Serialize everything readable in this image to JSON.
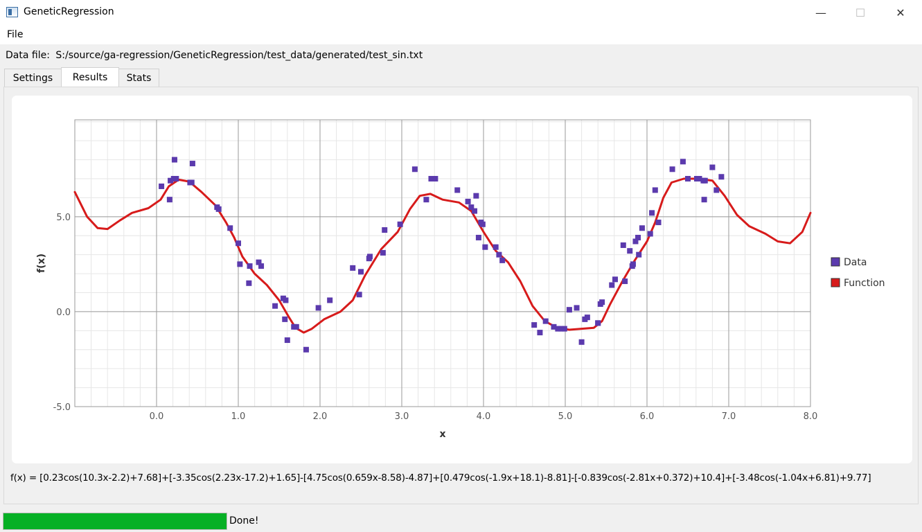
{
  "window": {
    "title": "GeneticRegression",
    "minimize_icon": "minimize-icon",
    "maximize_icon": "maximize-icon",
    "close_icon": "close-icon"
  },
  "menu": {
    "file": "File"
  },
  "datafile": {
    "label": "Data file:",
    "path": "S:/source/ga-regression/GeneticRegression/test_data/generated/test_sin.txt"
  },
  "tabs": [
    {
      "label": "Settings",
      "active": false
    },
    {
      "label": "Results",
      "active": true
    },
    {
      "label": "Stats",
      "active": false
    }
  ],
  "chart_data": {
    "type": "scatter",
    "title": "",
    "xlabel": "x",
    "ylabel": "f(x)",
    "xlim": [
      -1.0,
      8.0
    ],
    "ylim": [
      -5.0,
      10.0
    ],
    "x_ticks": [
      "0.0",
      "1.0",
      "2.0",
      "3.0",
      "4.0",
      "5.0",
      "6.0",
      "7.0",
      "8.0"
    ],
    "y_ticks": [
      "-5.0",
      "0.0",
      "5.0"
    ],
    "grid": true,
    "legend_position": "right",
    "colors": {
      "data": "#5b3aad",
      "function": "#d71b1b"
    },
    "series": [
      {
        "name": "Data",
        "kind": "points",
        "color": "#5b3aad",
        "points": [
          [
            0.06,
            6.6
          ],
          [
            0.16,
            5.9
          ],
          [
            0.17,
            6.9
          ],
          [
            0.21,
            7.0
          ],
          [
            0.22,
            8.0
          ],
          [
            0.24,
            7.0
          ],
          [
            0.41,
            6.8
          ],
          [
            0.43,
            6.8
          ],
          [
            0.44,
            7.8
          ],
          [
            0.74,
            5.5
          ],
          [
            0.76,
            5.4
          ],
          [
            0.9,
            4.4
          ],
          [
            1.0,
            3.6
          ],
          [
            1.02,
            2.5
          ],
          [
            1.13,
            1.5
          ],
          [
            1.14,
            2.4
          ],
          [
            1.25,
            2.6
          ],
          [
            1.28,
            2.4
          ],
          [
            1.45,
            0.3
          ],
          [
            1.55,
            0.7
          ],
          [
            1.57,
            -0.4
          ],
          [
            1.58,
            0.6
          ],
          [
            1.6,
            -1.5
          ],
          [
            1.68,
            -0.8
          ],
          [
            1.71,
            -0.8
          ],
          [
            1.83,
            -2.0
          ],
          [
            1.98,
            0.2
          ],
          [
            2.12,
            0.6
          ],
          [
            2.4,
            2.3
          ],
          [
            2.48,
            0.9
          ],
          [
            2.5,
            2.1
          ],
          [
            2.6,
            2.8
          ],
          [
            2.61,
            2.9
          ],
          [
            2.77,
            3.1
          ],
          [
            2.79,
            4.3
          ],
          [
            2.98,
            4.6
          ],
          [
            3.16,
            7.5
          ],
          [
            3.3,
            5.9
          ],
          [
            3.36,
            7.0
          ],
          [
            3.41,
            7.0
          ],
          [
            3.68,
            6.4
          ],
          [
            3.81,
            5.8
          ],
          [
            3.85,
            5.5
          ],
          [
            3.89,
            5.3
          ],
          [
            3.91,
            6.1
          ],
          [
            3.94,
            3.9
          ],
          [
            3.97,
            4.7
          ],
          [
            3.99,
            4.6
          ],
          [
            4.02,
            3.4
          ],
          [
            4.15,
            3.4
          ],
          [
            4.19,
            3.0
          ],
          [
            4.23,
            2.7
          ],
          [
            4.62,
            -0.7
          ],
          [
            4.69,
            -1.1
          ],
          [
            4.76,
            -0.5
          ],
          [
            4.86,
            -0.8
          ],
          [
            4.91,
            -0.9
          ],
          [
            4.95,
            -0.9
          ],
          [
            4.99,
            -0.9
          ],
          [
            5.05,
            0.1
          ],
          [
            5.14,
            0.2
          ],
          [
            5.2,
            -1.6
          ],
          [
            5.24,
            -0.4
          ],
          [
            5.27,
            -0.3
          ],
          [
            5.4,
            -0.6
          ],
          [
            5.4,
            -0.6
          ],
          [
            5.43,
            0.4
          ],
          [
            5.45,
            0.5
          ],
          [
            5.57,
            1.4
          ],
          [
            5.61,
            1.7
          ],
          [
            5.71,
            3.5
          ],
          [
            5.73,
            1.6
          ],
          [
            5.79,
            3.2
          ],
          [
            5.82,
            2.4
          ],
          [
            5.83,
            2.5
          ],
          [
            5.86,
            3.7
          ],
          [
            5.89,
            3.9
          ],
          [
            5.9,
            3.0
          ],
          [
            5.94,
            4.4
          ],
          [
            6.04,
            4.1
          ],
          [
            6.06,
            5.2
          ],
          [
            6.1,
            6.4
          ],
          [
            6.14,
            4.7
          ],
          [
            6.31,
            7.5
          ],
          [
            6.44,
            7.9
          ],
          [
            6.5,
            7.0
          ],
          [
            6.61,
            7.0
          ],
          [
            6.64,
            7.0
          ],
          [
            6.69,
            6.9
          ],
          [
            6.7,
            5.9
          ],
          [
            6.71,
            6.9
          ],
          [
            6.8,
            7.6
          ],
          [
            6.85,
            6.4
          ],
          [
            6.91,
            7.1
          ]
        ]
      },
      {
        "name": "Function",
        "kind": "line",
        "color": "#d71b1b",
        "points": [
          [
            -1.0,
            6.3
          ],
          [
            -0.85,
            5.0
          ],
          [
            -0.72,
            4.4
          ],
          [
            -0.6,
            4.35
          ],
          [
            -0.45,
            4.8
          ],
          [
            -0.3,
            5.2
          ],
          [
            -0.1,
            5.45
          ],
          [
            0.05,
            5.9
          ],
          [
            0.15,
            6.6
          ],
          [
            0.27,
            6.95
          ],
          [
            0.4,
            6.85
          ],
          [
            0.55,
            6.3
          ],
          [
            0.72,
            5.6
          ],
          [
            0.85,
            4.7
          ],
          [
            0.95,
            3.9
          ],
          [
            1.05,
            2.9
          ],
          [
            1.2,
            2.0
          ],
          [
            1.35,
            1.4
          ],
          [
            1.5,
            0.6
          ],
          [
            1.62,
            -0.3
          ],
          [
            1.7,
            -0.85
          ],
          [
            1.8,
            -1.1
          ],
          [
            1.9,
            -0.9
          ],
          [
            2.05,
            -0.4
          ],
          [
            2.25,
            0.0
          ],
          [
            2.4,
            0.6
          ],
          [
            2.55,
            1.9
          ],
          [
            2.75,
            3.3
          ],
          [
            2.95,
            4.2
          ],
          [
            3.1,
            5.4
          ],
          [
            3.22,
            6.1
          ],
          [
            3.35,
            6.2
          ],
          [
            3.5,
            5.9
          ],
          [
            3.7,
            5.75
          ],
          [
            3.85,
            5.3
          ],
          [
            4.0,
            4.2
          ],
          [
            4.15,
            3.2
          ],
          [
            4.3,
            2.6
          ],
          [
            4.45,
            1.6
          ],
          [
            4.6,
            0.3
          ],
          [
            4.75,
            -0.5
          ],
          [
            4.9,
            -0.85
          ],
          [
            5.05,
            -0.95
          ],
          [
            5.2,
            -0.9
          ],
          [
            5.35,
            -0.85
          ],
          [
            5.45,
            -0.5
          ],
          [
            5.55,
            0.4
          ],
          [
            5.7,
            1.6
          ],
          [
            5.85,
            2.7
          ],
          [
            6.0,
            3.7
          ],
          [
            6.1,
            4.7
          ],
          [
            6.2,
            6.0
          ],
          [
            6.3,
            6.8
          ],
          [
            6.45,
            7.0
          ],
          [
            6.6,
            7.0
          ],
          [
            6.8,
            6.9
          ],
          [
            6.95,
            6.1
          ],
          [
            7.1,
            5.1
          ],
          [
            7.25,
            4.5
          ],
          [
            7.45,
            4.1
          ],
          [
            7.6,
            3.7
          ],
          [
            7.75,
            3.6
          ],
          [
            7.9,
            4.2
          ],
          [
            8.0,
            5.2
          ]
        ]
      }
    ]
  },
  "formula": "f(x) = [0.23cos(10.3x-2.2)+7.68]+[-3.35cos(2.23x-17.2)+1.65]-[4.75cos(0.659x-8.58)-4.87]+[0.479cos(-1.9x+18.1)-8.81]-[-0.839cos(-2.81x+0.372)+10.4]+[-3.48cos(-1.04x+6.81)+9.77]",
  "status": {
    "progress": 1.0,
    "text": "Done!"
  }
}
